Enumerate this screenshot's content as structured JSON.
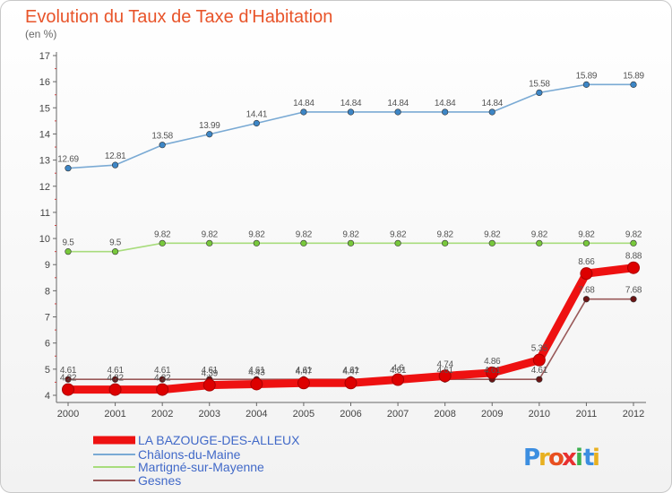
{
  "chart_data": {
    "type": "line",
    "title": "Evolution du Taux de Taxe d'Habitation",
    "subtitle": "(en %)",
    "x": [
      "2000",
      "2001",
      "2002",
      "2003",
      "2004",
      "2005",
      "2006",
      "2007",
      "2008",
      "2009",
      "2010",
      "2011",
      "2012"
    ],
    "ylim": [
      4,
      17
    ],
    "yticks": [
      "4",
      "5",
      "6",
      "7",
      "8",
      "9",
      "10",
      "11",
      "12",
      "13",
      "14",
      "15",
      "16",
      "17"
    ],
    "grid": false,
    "legend_position": "bottom-left",
    "series": [
      {
        "name": "Châlons-du-Maine",
        "color": "#7aaad4",
        "marker_color": "#3d86c6",
        "values": [
          12.69,
          12.81,
          13.58,
          13.99,
          14.41,
          14.84,
          14.84,
          14.84,
          14.84,
          14.84,
          15.58,
          15.89,
          15.89
        ],
        "labels": [
          "12.69",
          "12.81",
          "13.58",
          "13.99",
          "14.41",
          "14.84",
          "14.84",
          "14.84",
          "14.84",
          "14.84",
          "15.58",
          "15.89",
          "15.89"
        ]
      },
      {
        "name": "Martigné-sur-Mayenne",
        "color": "#a8dc7c",
        "marker_color": "#78c83c",
        "values": [
          9.5,
          9.5,
          9.82,
          9.82,
          9.82,
          9.82,
          9.82,
          9.82,
          9.82,
          9.82,
          9.82,
          9.82,
          9.82
        ],
        "labels": [
          "9.5",
          "9.5",
          "9.82",
          "9.82",
          "9.82",
          "9.82",
          "9.82",
          "9.82",
          "9.82",
          "9.82",
          "9.82",
          "9.82",
          "9.82"
        ]
      },
      {
        "name": "Gesnes",
        "color": "#9a5a5a",
        "marker_color": "#6a1414",
        "values": [
          4.61,
          4.61,
          4.61,
          4.61,
          4.61,
          4.61,
          4.61,
          4.61,
          4.61,
          4.61,
          4.61,
          7.68,
          7.68
        ],
        "labels": [
          "4.61",
          "4.61",
          "4.61",
          "4.61",
          "4.61",
          "4.61",
          "4.61",
          "4.61",
          "4.61",
          "4.61",
          "4.61",
          "7.68",
          "7.68"
        ]
      },
      {
        "name": "LA BAZOUGE-DES-ALLEUX",
        "color": "#ee1111",
        "marker_color": "#dd0000",
        "values": [
          4.22,
          4.22,
          4.22,
          4.39,
          4.43,
          4.47,
          4.47,
          4.6,
          4.74,
          4.86,
          5.35,
          8.66,
          8.88
        ],
        "labels": [
          "4.22",
          "4.22",
          "4.22",
          "4.39",
          "4.43",
          "4.47",
          "4.47",
          "4.6",
          "4.74",
          "4.86",
          "5.35",
          "8.66",
          "8.88"
        ]
      }
    ],
    "legend": [
      {
        "name": "LA BAZOUGE-DES-ALLEUX",
        "color": "#ee1111",
        "text_color": "#4169c8"
      },
      {
        "name": "Châlons-du-Maine",
        "color": "#7aaad4",
        "text_color": "#4169c8"
      },
      {
        "name": "Martigné-sur-Mayenne",
        "color": "#a8dc7c",
        "text_color": "#4169c8"
      },
      {
        "name": "Gesnes",
        "color": "#9a5a5a",
        "text_color": "#4169c8"
      }
    ]
  },
  "logo": {
    "text": "Proxiti",
    "letters": [
      "P",
      "r",
      "o",
      "x",
      "i",
      "t",
      "i"
    ],
    "colors": [
      "#3c8ee0",
      "#e8b020",
      "#e85020",
      "#e83030",
      "#3cb050",
      "#3c8ee0",
      "#e8b020"
    ]
  }
}
